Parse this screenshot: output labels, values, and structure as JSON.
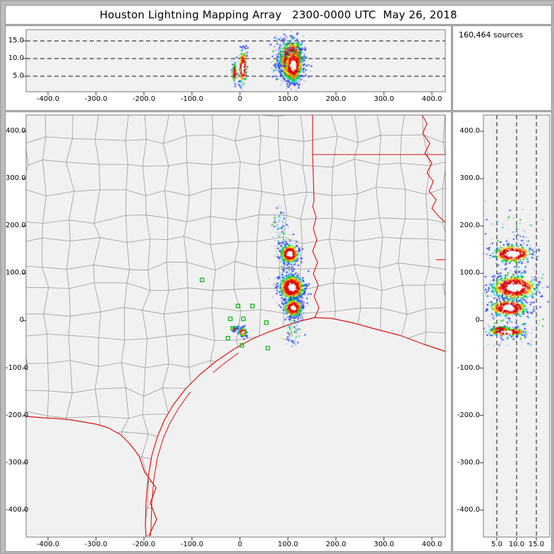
{
  "window": {
    "title": "Houston Lightning Mapping Array   2300-0000 UTC  May 26, 2018"
  },
  "sources_box": {
    "label": "160,464 sources"
  },
  "chart_data": {
    "type": "scatter",
    "title": "Houston Lightning Mapping Array 2300-0000 UTC May 26, 2018",
    "total_sources_label": "160,464 sources",
    "total_sources": 160464,
    "units": "km",
    "panels": {
      "alt_ew": {
        "role": "altitude (km) vs east-west distance (km), top projection",
        "x_ticks": [
          {
            "v": -400,
            "label": "-400.0"
          },
          {
            "v": -300,
            "label": "-300.0"
          },
          {
            "v": -200,
            "label": "-200.0"
          },
          {
            "v": -100,
            "label": "-100.0"
          },
          {
            "v": 0,
            "label": "0"
          },
          {
            "v": 100,
            "label": "100.0"
          },
          {
            "v": 200,
            "label": "200.0"
          },
          {
            "v": 300,
            "label": "300.0"
          },
          {
            "v": 400,
            "label": "400.0"
          }
        ],
        "alt_ticks": [
          {
            "v": 5,
            "label": "5.0"
          },
          {
            "v": 10,
            "label": "10.0"
          },
          {
            "v": 15,
            "label": "15.0"
          }
        ],
        "x_range": [
          -445,
          425
        ],
        "alt_range": [
          0,
          18
        ],
        "grid": "dashed altitude lines"
      },
      "plan": {
        "role": "plan view map, north-south (km) vs east-west (km) centered on Houston",
        "x_ticks": [
          {
            "v": -400,
            "label": "-400.0"
          },
          {
            "v": -300,
            "label": "-300.0"
          },
          {
            "v": -200,
            "label": "-200.0"
          },
          {
            "v": -100,
            "label": "-100.0"
          },
          {
            "v": 0,
            "label": "0"
          },
          {
            "v": 100,
            "label": "100.0"
          },
          {
            "v": 200,
            "label": "200.0"
          },
          {
            "v": 300,
            "label": "300.0"
          },
          {
            "v": 400,
            "label": "400.0"
          }
        ],
        "y_ticks": [
          {
            "v": 400,
            "label": "400.0"
          },
          {
            "v": 300,
            "label": "300.0"
          },
          {
            "v": 200,
            "label": "200.0"
          },
          {
            "v": 100,
            "label": "100.0"
          },
          {
            "v": 0,
            "label": "0"
          },
          {
            "v": -100,
            "label": "-100.0"
          },
          {
            "v": -200,
            "label": "-200.0"
          },
          {
            "v": -300,
            "label": "-300.0"
          },
          {
            "v": -400,
            "label": "-400.0"
          }
        ],
        "x_range": [
          -445,
          425
        ],
        "y_range": [
          -457,
          434
        ],
        "overlays": "county outlines (gray), state borders and coastline (red), LMA station squares (green)"
      },
      "alt_ns": {
        "role": "north-south distance (km) vs altitude (km), right projection",
        "alt_ticks": [
          {
            "v": 5,
            "label": "5.0"
          },
          {
            "v": 10,
            "label": "10.0"
          },
          {
            "v": 15,
            "label": "15.0"
          }
        ],
        "y_ticks": [
          {
            "v": 400,
            "label": "400.0"
          },
          {
            "v": 300,
            "label": "300.0"
          },
          {
            "v": 200,
            "label": "200.0"
          },
          {
            "v": 100,
            "label": "100.0"
          },
          {
            "v": 0,
            "label": "0"
          },
          {
            "v": -100,
            "label": "-100.0"
          },
          {
            "v": -200,
            "label": "-200.0"
          },
          {
            "v": -300,
            "label": "-300.0"
          },
          {
            "v": -400,
            "label": "-400.0"
          }
        ],
        "grid": "dashed altitude lines"
      }
    },
    "color_scale": [
      "#2233ee",
      "#00c8e0",
      "#00cc00",
      "#ffdd00",
      "#ff7700",
      "#dd0000",
      "#ffffff"
    ],
    "map_colors": {
      "county": "#9a9a9a",
      "state_border": "#dd1111",
      "station": "#00b400"
    },
    "styles": {
      "dash_color": "#111111",
      "plot_bg": "#f1f1f1",
      "plot_border": "#7a7a7a",
      "tick_color": "#333333"
    },
    "storm_clusters": [
      {
        "name": "north-cell",
        "ew_km": 104,
        "ns_km": 141,
        "alt_km": 9,
        "radius_km": 17,
        "alt_spread_km": 2.7,
        "hot": true,
        "n": 450
      },
      {
        "name": "central-cell",
        "ew_km": 108,
        "ns_km": 70,
        "alt_km": 9.5,
        "radius_km": 23,
        "alt_spread_km": 3.2,
        "hot": true,
        "n": 800
      },
      {
        "name": "south-cell",
        "ew_km": 111,
        "ns_km": 27,
        "alt_km": 8,
        "radius_km": 16,
        "alt_spread_km": 2.6,
        "hot": true,
        "n": 450
      },
      {
        "name": "houston-cell",
        "ew_km": 6,
        "ns_km": -24,
        "alt_km": 7.5,
        "radius_km": 7,
        "alt_spread_km": 2.7,
        "hot": true,
        "n": 240
      },
      {
        "name": "west-flank-cell",
        "ew_km": -11,
        "ns_km": -17,
        "alt_km": 6,
        "radius_km": 4,
        "alt_spread_km": 1.6,
        "hot": false,
        "n": 80
      }
    ],
    "noise_track": {
      "desc": "sparse low-density sources along the storm line east of Houston",
      "path_km": [
        [
          88,
          235
        ],
        [
          75,
          205
        ],
        [
          92,
          178
        ],
        [
          86,
          150
        ],
        [
          104,
          128
        ],
        [
          92,
          105
        ],
        [
          112,
          92
        ],
        [
          100,
          70
        ],
        [
          118,
          55
        ],
        [
          125,
          30
        ],
        [
          116,
          8
        ],
        [
          108,
          -12
        ],
        [
          118,
          -30
        ],
        [
          100,
          -45
        ]
      ],
      "jitter_km": 8,
      "n": 430
    },
    "stations_km": [
      [
        -79,
        86
      ],
      [
        -4,
        31
      ],
      [
        26,
        31
      ],
      [
        -20,
        4
      ],
      [
        7,
        4
      ],
      [
        -15,
        -16
      ],
      [
        -25,
        -37
      ],
      [
        4,
        -52
      ],
      [
        55,
        -4
      ],
      [
        58,
        -58
      ]
    ]
  }
}
